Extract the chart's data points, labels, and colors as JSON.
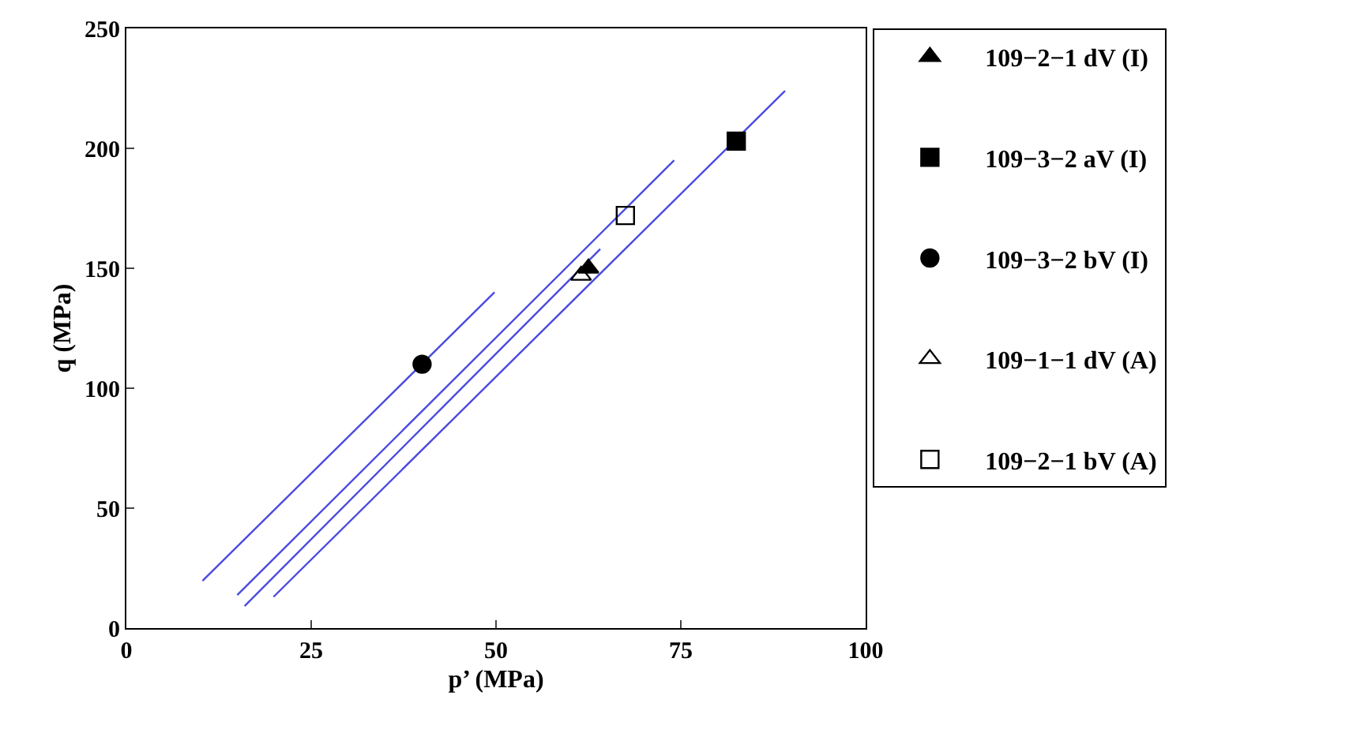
{
  "chart_data": {
    "type": "scatter",
    "xlabel": "p’ (MPa)",
    "ylabel": "q (MPa)",
    "xlim": [
      0,
      100
    ],
    "ylim": [
      0,
      250
    ],
    "xticks": [
      0,
      25,
      50,
      75,
      100
    ],
    "yticks": [
      0,
      50,
      100,
      150,
      200,
      250
    ],
    "legend": "right",
    "series": [
      {
        "name": "109−2−1 dV (I)",
        "color": "#000000",
        "marker": "triangle",
        "x": [
          62.5
        ],
        "values": [
          150
        ]
      },
      {
        "name": "109−3−2 aV (I)",
        "color": "#000000",
        "marker": "square",
        "x": [
          82.5
        ],
        "values": [
          203
        ]
      },
      {
        "name": "109−3−2 bV (I)",
        "color": "#000000",
        "marker": "circle",
        "x": [
          40
        ],
        "values": [
          110
        ]
      },
      {
        "name": "109−1−1 dV (A)",
        "color": "#000000",
        "marker": "triangle-open",
        "x": [
          61.5
        ],
        "values": [
          147
        ]
      },
      {
        "name": "109−2−1 bV (A)",
        "color": "#000000",
        "marker": "square-open",
        "x": [
          67.5
        ],
        "values": [
          172
        ]
      },
      {
        "type": "line",
        "color": "#4a4ae0",
        "marker": "none",
        "x": [
          10.3,
          49.8
        ],
        "values": [
          19.7,
          140
        ]
      },
      {
        "type": "line",
        "color": "#4a4ae0",
        "marker": "none",
        "x": [
          15,
          74.1
        ],
        "values": [
          13.8,
          195
        ]
      },
      {
        "type": "line",
        "color": "#4a4ae0",
        "marker": "none",
        "x": [
          16,
          64.1
        ],
        "values": [
          9.2,
          158
        ]
      },
      {
        "type": "line",
        "color": "#4a4ae0",
        "marker": "none",
        "x": [
          19.9,
          89.1
        ],
        "values": [
          13,
          224
        ]
      }
    ]
  }
}
